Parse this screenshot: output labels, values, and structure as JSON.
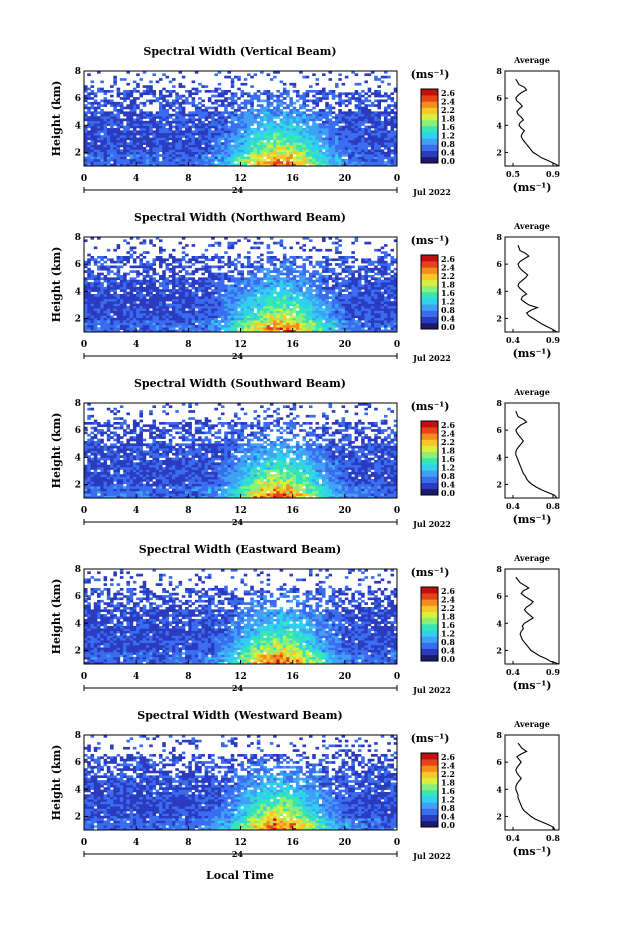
{
  "figure": {
    "xlabel": "Local Time",
    "date_label": "Jul 2022",
    "day_label": "24",
    "unit_label": "(ms⁻¹)",
    "avg_title": "Average",
    "colorbar_ticks": [
      "2.6",
      "2.4",
      "2.2",
      "1.8",
      "1.6",
      "1.2",
      "0.8",
      "0.4",
      "0.0"
    ],
    "colorscale": [
      "#1a1a6e",
      "#2a3bbf",
      "#3a6cf0",
      "#3fa0f5",
      "#2fd0f0",
      "#36e6b4",
      "#8af07a",
      "#d8ef3c",
      "#f7c72a",
      "#f48c1e",
      "#e8421a",
      "#c01010"
    ]
  },
  "chart_data": [
    {
      "type": "heatmap",
      "title": "Spectral Width (Vertical Beam)",
      "ylabel": "Height (km)",
      "xlim": [
        0,
        24
      ],
      "ylim": [
        1,
        8
      ],
      "xticks": [
        "0",
        "4",
        "8",
        "12",
        "16",
        "20",
        "0"
      ],
      "yticks": [
        "2",
        "4",
        "6",
        "8"
      ],
      "seed": 11,
      "avg_profile": {
        "xlim": [
          0.4,
          0.9
        ],
        "xticks": [
          "0.5",
          "0.9"
        ],
        "ylim": [
          1,
          8
        ],
        "yticks": [
          "2",
          "4",
          "6",
          "8"
        ],
        "x": [
          0.9,
          0.85,
          0.8,
          0.74,
          0.7,
          0.66,
          0.64,
          0.62,
          0.6,
          0.58,
          0.56,
          0.55,
          0.56,
          0.58,
          0.55,
          0.53,
          0.54,
          0.57,
          0.55,
          0.52,
          0.51,
          0.53,
          0.56,
          0.54,
          0.51,
          0.5,
          0.52,
          0.55,
          0.6,
          0.58,
          0.53,
          0.5
        ],
        "y": [
          1.0,
          1.2,
          1.4,
          1.6,
          1.8,
          2.0,
          2.2,
          2.4,
          2.6,
          2.8,
          3.0,
          3.2,
          3.4,
          3.6,
          3.8,
          4.0,
          4.2,
          4.4,
          4.6,
          4.8,
          5.0,
          5.2,
          5.4,
          5.6,
          5.8,
          6.0,
          6.2,
          6.4,
          6.6,
          6.8,
          7.0,
          7.4
        ]
      }
    },
    {
      "type": "heatmap",
      "title": "Spectral Width (Northward Beam)",
      "ylabel": "Height (km)",
      "xlim": [
        0,
        24
      ],
      "ylim": [
        1,
        8
      ],
      "xticks": [
        "0",
        "4",
        "8",
        "12",
        "16",
        "20",
        "0"
      ],
      "yticks": [
        "2",
        "4",
        "6",
        "8"
      ],
      "seed": 23,
      "avg_profile": {
        "xlim": [
          0.4,
          0.9
        ],
        "xticks": [
          "0.4",
          "0.9"
        ],
        "ylim": [
          1,
          8
        ],
        "yticks": [
          "2",
          "4",
          "6",
          "8"
        ],
        "x": [
          0.88,
          0.84,
          0.79,
          0.74,
          0.7,
          0.66,
          0.62,
          0.6,
          0.64,
          0.7,
          0.62,
          0.58,
          0.55,
          0.56,
          0.6,
          0.57,
          0.54,
          0.52,
          0.53,
          0.56,
          0.59,
          0.61,
          0.58,
          0.55,
          0.53,
          0.52,
          0.54,
          0.58,
          0.62,
          0.59,
          0.54,
          0.52
        ],
        "y": [
          1.0,
          1.2,
          1.4,
          1.6,
          1.8,
          2.0,
          2.2,
          2.4,
          2.6,
          2.8,
          3.0,
          3.2,
          3.4,
          3.6,
          3.8,
          4.0,
          4.2,
          4.4,
          4.6,
          4.8,
          5.0,
          5.2,
          5.4,
          5.6,
          5.8,
          6.0,
          6.2,
          6.4,
          6.6,
          6.8,
          7.0,
          7.4
        ]
      }
    },
    {
      "type": "heatmap",
      "title": "Spectral Width (Southward Beam)",
      "ylabel": "Height (km)",
      "xlim": [
        0,
        24
      ],
      "ylim": [
        1,
        8
      ],
      "xticks": [
        "0",
        "4",
        "8",
        "12",
        "16",
        "20",
        "0"
      ],
      "yticks": [
        "2",
        "4",
        "6",
        "8"
      ],
      "seed": 37,
      "avg_profile": {
        "xlim": [
          0.4,
          0.9
        ],
        "xticks": [
          "0.4",
          "0.8"
        ],
        "ylim": [
          1,
          8
        ],
        "yticks": [
          "2",
          "4",
          "6",
          "8"
        ],
        "x": [
          0.88,
          0.86,
          0.8,
          0.74,
          0.69,
          0.65,
          0.62,
          0.6,
          0.59,
          0.57,
          0.56,
          0.55,
          0.54,
          0.53,
          0.52,
          0.51,
          0.5,
          0.5,
          0.51,
          0.53,
          0.55,
          0.57,
          0.55,
          0.53,
          0.51,
          0.5,
          0.52,
          0.55,
          0.6,
          0.57,
          0.52,
          0.5
        ],
        "y": [
          1.0,
          1.2,
          1.4,
          1.6,
          1.8,
          2.0,
          2.2,
          2.4,
          2.6,
          2.8,
          3.0,
          3.2,
          3.4,
          3.6,
          3.8,
          4.0,
          4.2,
          4.4,
          4.6,
          4.8,
          5.0,
          5.2,
          5.4,
          5.6,
          5.8,
          6.0,
          6.2,
          6.4,
          6.6,
          6.8,
          7.0,
          7.4
        ]
      }
    },
    {
      "type": "heatmap",
      "title": "Spectral Width (Eastward Beam)",
      "ylabel": "Height (km)",
      "xlim": [
        0,
        24
      ],
      "ylim": [
        1,
        8
      ],
      "xticks": [
        "0",
        "4",
        "8",
        "12",
        "16",
        "20",
        "0"
      ],
      "yticks": [
        "2",
        "4",
        "6",
        "8"
      ],
      "seed": 53,
      "avg_profile": {
        "xlim": [
          0.4,
          0.9
        ],
        "xticks": [
          "0.4",
          "0.9"
        ],
        "ylim": [
          1,
          8
        ],
        "yticks": [
          "2",
          "4",
          "6",
          "8"
        ],
        "x": [
          0.9,
          0.82,
          0.78,
          0.72,
          0.68,
          0.64,
          0.62,
          0.6,
          0.58,
          0.56,
          0.55,
          0.54,
          0.55,
          0.57,
          0.56,
          0.58,
          0.62,
          0.66,
          0.63,
          0.6,
          0.58,
          0.6,
          0.64,
          0.66,
          0.62,
          0.58,
          0.55,
          0.57,
          0.62,
          0.58,
          0.54,
          0.5
        ],
        "y": [
          1.0,
          1.2,
          1.4,
          1.6,
          1.8,
          2.0,
          2.2,
          2.4,
          2.6,
          2.8,
          3.0,
          3.2,
          3.4,
          3.6,
          3.8,
          4.0,
          4.2,
          4.4,
          4.6,
          4.8,
          5.0,
          5.2,
          5.4,
          5.6,
          5.8,
          6.0,
          6.2,
          6.4,
          6.6,
          6.8,
          7.0,
          7.4
        ]
      }
    },
    {
      "type": "heatmap",
      "title": "Spectral Width (Westward Beam)",
      "ylabel": "Height (km)",
      "xlim": [
        0,
        24
      ],
      "ylim": [
        1,
        8
      ],
      "xticks": [
        "0",
        "4",
        "8",
        "12",
        "16",
        "20",
        "0"
      ],
      "yticks": [
        "2",
        "4",
        "6",
        "8"
      ],
      "seed": 71,
      "avg_profile": {
        "xlim": [
          0.4,
          0.9
        ],
        "xticks": [
          "0.4",
          "0.8"
        ],
        "ylim": [
          1,
          8
        ],
        "yticks": [
          "2",
          "4",
          "6",
          "8"
        ],
        "x": [
          0.86,
          0.85,
          0.8,
          0.74,
          0.68,
          0.64,
          0.61,
          0.58,
          0.56,
          0.55,
          0.54,
          0.53,
          0.52,
          0.52,
          0.51,
          0.5,
          0.5,
          0.51,
          0.53,
          0.55,
          0.53,
          0.51,
          0.5,
          0.51,
          0.53,
          0.55,
          0.53,
          0.51,
          0.55,
          0.6,
          0.56,
          0.52
        ],
        "y": [
          1.0,
          1.2,
          1.4,
          1.6,
          1.8,
          2.0,
          2.2,
          2.4,
          2.6,
          2.8,
          3.0,
          3.2,
          3.4,
          3.6,
          3.8,
          4.0,
          4.2,
          4.4,
          4.6,
          4.8,
          5.0,
          5.2,
          5.4,
          5.6,
          5.8,
          6.0,
          6.2,
          6.4,
          6.6,
          6.8,
          7.0,
          7.4
        ]
      }
    }
  ]
}
